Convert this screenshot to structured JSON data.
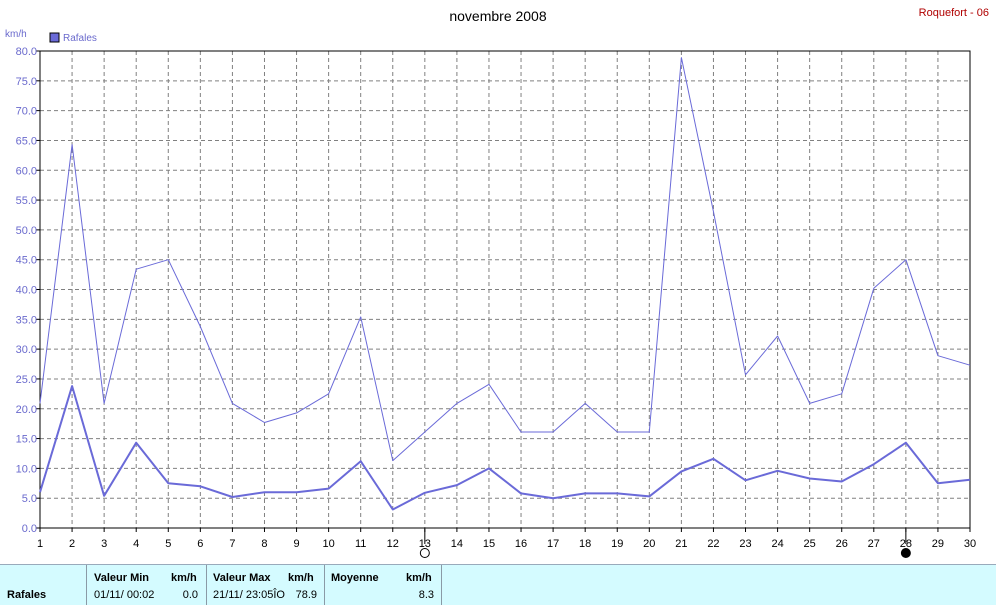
{
  "header": {
    "title": "novembre 2008",
    "station": "Roquefort - 06"
  },
  "chart_data": {
    "type": "line",
    "ylabel": "km/h",
    "ylim": [
      0,
      80
    ],
    "yticks": [
      "0.0",
      "5.0",
      "10.0",
      "15.0",
      "20.0",
      "25.0",
      "30.0",
      "35.0",
      "40.0",
      "45.0",
      "50.0",
      "55.0",
      "60.0",
      "65.0",
      "70.0",
      "75.0",
      "80.0"
    ],
    "x": [
      1,
      2,
      3,
      4,
      5,
      6,
      7,
      8,
      9,
      10,
      11,
      12,
      13,
      14,
      15,
      16,
      17,
      18,
      19,
      20,
      21,
      22,
      23,
      24,
      25,
      26,
      27,
      28,
      29,
      30
    ],
    "xticks": [
      "1",
      "2",
      "3",
      "4",
      "5",
      "6",
      "7",
      "8",
      "9",
      "10",
      "11",
      "12",
      "13",
      "14",
      "15",
      "16",
      "17",
      "18",
      "19",
      "20",
      "21",
      "22",
      "23",
      "24",
      "25",
      "26",
      "27",
      "28",
      "29",
      "30"
    ],
    "legend": {
      "label": "Rafales",
      "position": "top-left"
    },
    "grid": true,
    "series": [
      {
        "name": "Rafales",
        "role": "max",
        "values": [
          20.9,
          64.3,
          20.9,
          43.4,
          45.0,
          33.8,
          20.9,
          17.7,
          19.3,
          22.5,
          35.4,
          11.3,
          16.1,
          20.9,
          24.1,
          16.1,
          16.1,
          20.9,
          16.1,
          16.1,
          78.9,
          53.1,
          25.7,
          32.2,
          20.9,
          22.5,
          40.2,
          45.0,
          28.9,
          27.3
        ]
      },
      {
        "name": "Rafales",
        "role": "mean",
        "values": [
          6.0,
          23.8,
          5.4,
          14.3,
          7.5,
          7.0,
          5.2,
          6.0,
          6.0,
          6.6,
          11.2,
          3.1,
          5.9,
          7.2,
          10.0,
          5.8,
          5.0,
          5.8,
          5.8,
          5.3,
          9.5,
          11.6,
          8.0,
          9.6,
          8.3,
          7.8,
          10.7,
          14.3,
          7.5,
          8.1
        ]
      }
    ],
    "moon_phases": [
      {
        "day": 13,
        "phase": "full",
        "symbol": "○"
      },
      {
        "day": 28,
        "phase": "new",
        "symbol": "●"
      }
    ],
    "colors": {
      "line": "#6a6ad8",
      "grid": "#808080",
      "axis": "#6a6acd"
    }
  },
  "footer": {
    "row_label": "Rafales",
    "min": {
      "header": "Valeur Min",
      "unit": "km/h",
      "date": "01/11/  00:02",
      "value": "0.0"
    },
    "max": {
      "header": "Valeur Max",
      "unit": "km/h",
      "date": "21/11/  23:05ÎO",
      "value": "78.9"
    },
    "mean": {
      "header": "Moyenne",
      "unit": "km/h",
      "value": "8.3"
    }
  }
}
